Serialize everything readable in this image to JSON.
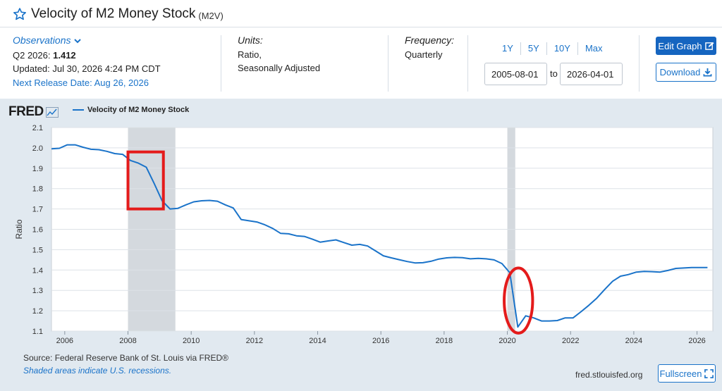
{
  "header": {
    "title": "Velocity of M2 Money Stock",
    "series_code": "(M2V)"
  },
  "observations": {
    "link_label": "Observations",
    "latest_label": "Q2 2026:",
    "latest_value": "1.412",
    "updated": "Updated: Jul 30, 2026 4:24 PM CDT",
    "next_release": "Next Release Date: Aug 26, 2026"
  },
  "units": {
    "label": "Units:",
    "line1": "Ratio,",
    "line2": "Seasonally Adjusted"
  },
  "frequency": {
    "label": "Frequency:",
    "value": "Quarterly"
  },
  "range": {
    "buttons": [
      "1Y",
      "5Y",
      "10Y",
      "Max"
    ],
    "start": "2005-08-01",
    "to_label": "to",
    "end": "2026-04-01"
  },
  "actions": {
    "edit_graph": "Edit Graph",
    "download": "Download",
    "fullscreen": "Fullscreen"
  },
  "logo": {
    "text": "FRED"
  },
  "footer": {
    "source": "Source: Federal Reserve Bank of St. Louis via FRED®",
    "shade_note": "Shaded areas indicate U.S. recessions.",
    "url": "fred.stlouisfed.org"
  },
  "colors": {
    "line": "#1a73c9",
    "panel_bg": "#e1e9f0",
    "recession": "#d4d9de",
    "annotation": "#e41b1b",
    "primary_button": "#1565c0"
  },
  "chart_data": {
    "type": "line",
    "ylabel": "Ratio",
    "legend": "Velocity of M2 Money Stock",
    "xlim": [
      2005.58,
      2026.5
    ],
    "ylim": [
      1.1,
      2.1
    ],
    "yticks": [
      "1.1",
      "1.2",
      "1.3",
      "1.4",
      "1.5",
      "1.6",
      "1.7",
      "1.8",
      "1.9",
      "2.0",
      "2.1"
    ],
    "xticks": [
      "2006",
      "2008",
      "2010",
      "2012",
      "2014",
      "2016",
      "2018",
      "2020",
      "2022",
      "2024",
      "2026"
    ],
    "recessions": [
      [
        2008.0,
        2009.5
      ],
      [
        2020.0,
        2020.25
      ]
    ],
    "series": [
      {
        "name": "Velocity of M2 Money Stock",
        "x": [
          2005.58,
          2005.83,
          2006.08,
          2006.33,
          2006.58,
          2006.83,
          2007.08,
          2007.33,
          2007.58,
          2007.83,
          2008.08,
          2008.33,
          2008.58,
          2008.83,
          2009.08,
          2009.33,
          2009.58,
          2009.83,
          2010.08,
          2010.33,
          2010.58,
          2010.83,
          2011.08,
          2011.33,
          2011.58,
          2011.83,
          2012.08,
          2012.33,
          2012.58,
          2012.83,
          2013.08,
          2013.33,
          2013.58,
          2013.83,
          2014.08,
          2014.33,
          2014.58,
          2014.83,
          2015.08,
          2015.33,
          2015.58,
          2015.83,
          2016.08,
          2016.33,
          2016.58,
          2016.83,
          2017.08,
          2017.33,
          2017.58,
          2017.83,
          2018.08,
          2018.33,
          2018.58,
          2018.83,
          2019.08,
          2019.33,
          2019.58,
          2019.83,
          2020.08,
          2020.33,
          2020.58,
          2020.83,
          2021.08,
          2021.33,
          2021.58,
          2021.83,
          2022.08,
          2022.33,
          2022.58,
          2022.83,
          2023.08,
          2023.33,
          2023.58,
          2023.83,
          2024.08,
          2024.33,
          2024.58,
          2024.83,
          2025.08,
          2025.33,
          2025.58,
          2025.83,
          2026.08,
          2026.33
        ],
        "y": [
          1.995,
          1.998,
          2.015,
          2.015,
          2.003,
          1.993,
          1.991,
          1.983,
          1.972,
          1.968,
          1.938,
          1.925,
          1.905,
          1.825,
          1.74,
          1.7,
          1.703,
          1.72,
          1.735,
          1.74,
          1.742,
          1.738,
          1.72,
          1.705,
          1.648,
          1.642,
          1.636,
          1.622,
          1.604,
          1.58,
          1.578,
          1.568,
          1.565,
          1.552,
          1.537,
          1.543,
          1.548,
          1.535,
          1.522,
          1.526,
          1.518,
          1.494,
          1.47,
          1.46,
          1.451,
          1.442,
          1.435,
          1.436,
          1.443,
          1.454,
          1.46,
          1.462,
          1.461,
          1.455,
          1.457,
          1.455,
          1.45,
          1.432,
          1.387,
          1.12,
          1.175,
          1.165,
          1.15,
          1.15,
          1.152,
          1.165,
          1.165,
          1.195,
          1.227,
          1.262,
          1.305,
          1.345,
          1.37,
          1.378,
          1.39,
          1.393,
          1.392,
          1.39,
          1.398,
          1.408,
          1.41,
          1.412,
          1.412,
          1.412
        ]
      }
    ],
    "annotations": [
      {
        "shape": "rectangle",
        "x": [
          2008.0,
          2009.12
        ],
        "y": [
          1.7,
          1.98
        ]
      },
      {
        "shape": "ellipse",
        "x": [
          2019.9,
          2020.8
        ],
        "y": [
          1.09,
          1.41
        ]
      }
    ]
  }
}
